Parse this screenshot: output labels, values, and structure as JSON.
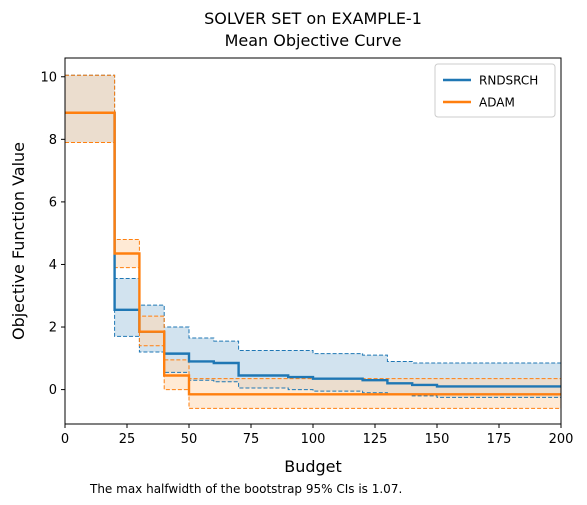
{
  "chart_data": {
    "type": "line",
    "step": true,
    "title_lines": [
      "SOLVER SET on EXAMPLE-1",
      "Mean Objective Curve"
    ],
    "xlabel": "Budget",
    "ylabel": "Objective Function Value",
    "xlim": [
      0,
      200
    ],
    "ylim": [
      -1.1,
      10.6
    ],
    "xticks": [
      0,
      25,
      50,
      75,
      100,
      125,
      150,
      175,
      200
    ],
    "yticks": [
      0,
      2,
      4,
      6,
      8,
      10
    ],
    "grid": false,
    "legend_position": "top-right",
    "footnote": "The max halfwidth of the bootstrap 95% CIs is 1.07.",
    "series": [
      {
        "name": "RNDSRCH",
        "color": "#1f77b4",
        "fill_color": "#a6c8e0",
        "x": [
          0,
          20,
          30,
          40,
          50,
          60,
          70,
          90,
          100,
          120,
          130,
          140,
          150,
          200
        ],
        "mean": [
          8.85,
          2.55,
          1.85,
          1.15,
          0.9,
          0.85,
          0.45,
          0.4,
          0.35,
          0.3,
          0.2,
          0.15,
          0.1,
          0.1
        ],
        "upper": [
          10.05,
          3.55,
          2.7,
          2.0,
          1.65,
          1.55,
          1.25,
          1.25,
          1.15,
          1.1,
          0.9,
          0.85,
          0.85,
          0.85
        ],
        "lower": [
          7.9,
          1.7,
          1.2,
          0.55,
          0.3,
          0.25,
          0.05,
          0.0,
          -0.05,
          -0.1,
          -0.15,
          -0.2,
          -0.25,
          -0.25
        ]
      },
      {
        "name": "ADAM",
        "color": "#ff7f0e",
        "fill_color": "#ffd9b3",
        "x": [
          0,
          20,
          30,
          40,
          50,
          200
        ],
        "mean": [
          8.85,
          4.35,
          1.85,
          0.45,
          -0.15,
          -0.15
        ],
        "upper": [
          10.05,
          4.8,
          2.35,
          0.95,
          0.35,
          0.35
        ],
        "lower": [
          7.9,
          3.9,
          1.4,
          0.0,
          -0.6,
          -0.6
        ]
      }
    ]
  }
}
